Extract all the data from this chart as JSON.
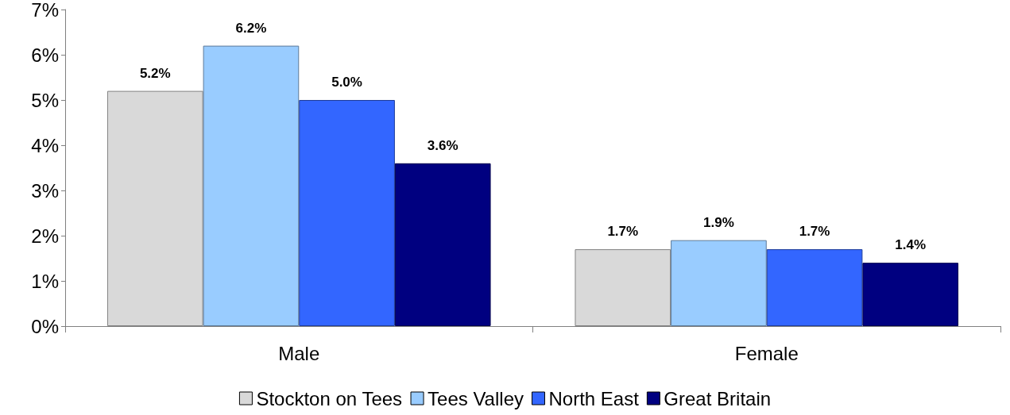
{
  "chart_data": {
    "type": "bar",
    "categories": [
      "Male",
      "Female"
    ],
    "series": [
      {
        "name": "Stockton on Tees",
        "color": "#d9d9d9",
        "values": [
          5.2,
          1.7
        ],
        "value_labels": [
          "5.2%",
          "1.7%"
        ]
      },
      {
        "name": "Tees Valley",
        "color": "#99ccff",
        "values": [
          6.2,
          1.9
        ],
        "value_labels": [
          "6.2%",
          "1.9%"
        ]
      },
      {
        "name": "North East",
        "color": "#3366ff",
        "values": [
          5.0,
          1.7
        ],
        "value_labels": [
          "5.0%",
          "1.7%"
        ]
      },
      {
        "name": "Great Britain",
        "color": "#000080",
        "values": [
          3.6,
          1.4
        ],
        "value_labels": [
          "3.6%",
          "1.4%"
        ]
      }
    ],
    "ylim": [
      0,
      7
    ],
    "yticks": [
      {
        "value": 0,
        "label": "0%"
      },
      {
        "value": 1,
        "label": "1%"
      },
      {
        "value": 2,
        "label": "2%"
      },
      {
        "value": 3,
        "label": "3%"
      },
      {
        "value": 4,
        "label": "4%"
      },
      {
        "value": 5,
        "label": "5%"
      },
      {
        "value": 6,
        "label": "6%"
      },
      {
        "value": 7,
        "label": "7%"
      }
    ],
    "grid": false,
    "legend": "bottom"
  }
}
